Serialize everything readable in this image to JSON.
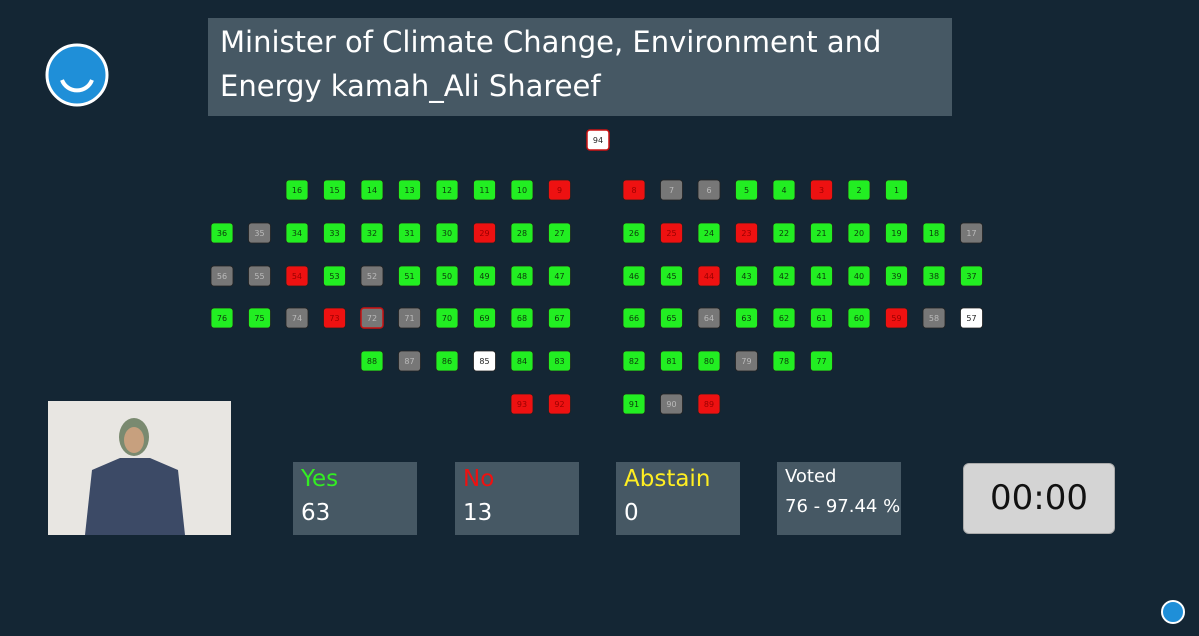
{
  "title": "Minister of Climate Change, Environment and Energy kamah_Ali Shareef",
  "seats": {
    "top": [
      {
        "n": 94,
        "fill": "#ffffff",
        "border": "#cc1111"
      }
    ],
    "left_rows": [
      [
        {
          "n": 16,
          "fill": "#22ee22"
        },
        {
          "n": 15,
          "fill": "#22ee22"
        },
        {
          "n": 14,
          "fill": "#22ee22"
        },
        {
          "n": 13,
          "fill": "#22ee22"
        },
        {
          "n": 12,
          "fill": "#22ee22"
        },
        {
          "n": 11,
          "fill": "#22ee22"
        },
        {
          "n": 10,
          "fill": "#22ee22"
        },
        {
          "n": 9,
          "fill": "#ee1111"
        }
      ],
      [
        {
          "n": 36,
          "fill": "#22ee22"
        },
        {
          "n": 35,
          "fill": "#777777"
        },
        {
          "n": 34,
          "fill": "#22ee22"
        },
        {
          "n": 33,
          "fill": "#22ee22"
        },
        {
          "n": 32,
          "fill": "#22ee22"
        },
        {
          "n": 31,
          "fill": "#22ee22"
        },
        {
          "n": 30,
          "fill": "#22ee22"
        },
        {
          "n": 29,
          "fill": "#ee1111"
        },
        {
          "n": 28,
          "fill": "#22ee22"
        },
        {
          "n": 27,
          "fill": "#22ee22"
        }
      ],
      [
        {
          "n": 56,
          "fill": "#777777"
        },
        {
          "n": 55,
          "fill": "#777777"
        },
        {
          "n": 54,
          "fill": "#ee1111"
        },
        {
          "n": 53,
          "fill": "#22ee22"
        },
        {
          "n": 52,
          "fill": "#777777"
        },
        {
          "n": 51,
          "fill": "#22ee22"
        },
        {
          "n": 50,
          "fill": "#22ee22"
        },
        {
          "n": 49,
          "fill": "#22ee22"
        },
        {
          "n": 48,
          "fill": "#22ee22"
        },
        {
          "n": 47,
          "fill": "#22ee22"
        }
      ],
      [
        {
          "n": 76,
          "fill": "#22ee22"
        },
        {
          "n": 75,
          "fill": "#22ee22"
        },
        {
          "n": 74,
          "fill": "#777777"
        },
        {
          "n": 73,
          "fill": "#ee1111"
        },
        {
          "n": 72,
          "fill": "#777777",
          "border": "#cc1111"
        },
        {
          "n": 71,
          "fill": "#777777"
        },
        {
          "n": 70,
          "fill": "#22ee22"
        },
        {
          "n": 69,
          "fill": "#22ee22"
        },
        {
          "n": 68,
          "fill": "#22ee22"
        },
        {
          "n": 67,
          "fill": "#22ee22"
        }
      ],
      [
        {
          "n": 88,
          "fill": "#22ee22"
        },
        {
          "n": 87,
          "fill": "#777777"
        },
        {
          "n": 86,
          "fill": "#22ee22"
        },
        {
          "n": 85,
          "fill": "#ffffff"
        },
        {
          "n": 84,
          "fill": "#22ee22"
        },
        {
          "n": 83,
          "fill": "#22ee22"
        }
      ],
      [
        {
          "n": 93,
          "fill": "#ee1111"
        },
        {
          "n": 92,
          "fill": "#ee1111"
        }
      ]
    ],
    "right_rows": [
      [
        {
          "n": 8,
          "fill": "#ee1111"
        },
        {
          "n": 7,
          "fill": "#777777"
        },
        {
          "n": 6,
          "fill": "#777777"
        },
        {
          "n": 5,
          "fill": "#22ee22"
        },
        {
          "n": 4,
          "fill": "#22ee22"
        },
        {
          "n": 3,
          "fill": "#ee1111"
        },
        {
          "n": 2,
          "fill": "#22ee22"
        },
        {
          "n": 1,
          "fill": "#22ee22"
        }
      ],
      [
        {
          "n": 26,
          "fill": "#22ee22"
        },
        {
          "n": 25,
          "fill": "#ee1111"
        },
        {
          "n": 24,
          "fill": "#22ee22"
        },
        {
          "n": 23,
          "fill": "#ee1111"
        },
        {
          "n": 22,
          "fill": "#22ee22"
        },
        {
          "n": 21,
          "fill": "#22ee22"
        },
        {
          "n": 20,
          "fill": "#22ee22"
        },
        {
          "n": 19,
          "fill": "#22ee22"
        },
        {
          "n": 18,
          "fill": "#22ee22"
        },
        {
          "n": 17,
          "fill": "#777777"
        }
      ],
      [
        {
          "n": 46,
          "fill": "#22ee22"
        },
        {
          "n": 45,
          "fill": "#22ee22"
        },
        {
          "n": 44,
          "fill": "#ee1111"
        },
        {
          "n": 43,
          "fill": "#22ee22"
        },
        {
          "n": 42,
          "fill": "#22ee22"
        },
        {
          "n": 41,
          "fill": "#22ee22"
        },
        {
          "n": 40,
          "fill": "#22ee22"
        },
        {
          "n": 39,
          "fill": "#22ee22"
        },
        {
          "n": 38,
          "fill": "#22ee22"
        },
        {
          "n": 37,
          "fill": "#22ee22"
        }
      ],
      [
        {
          "n": 66,
          "fill": "#22ee22"
        },
        {
          "n": 65,
          "fill": "#22ee22"
        },
        {
          "n": 64,
          "fill": "#777777"
        },
        {
          "n": 63,
          "fill": "#22ee22"
        },
        {
          "n": 62,
          "fill": "#22ee22"
        },
        {
          "n": 61,
          "fill": "#22ee22"
        },
        {
          "n": 60,
          "fill": "#22ee22"
        },
        {
          "n": 59,
          "fill": "#ee1111"
        },
        {
          "n": 58,
          "fill": "#777777"
        },
        {
          "n": 57,
          "fill": "#ffffff"
        }
      ],
      [
        {
          "n": 82,
          "fill": "#22ee22"
        },
        {
          "n": 81,
          "fill": "#22ee22"
        },
        {
          "n": 80,
          "fill": "#22ee22"
        },
        {
          "n": 79,
          "fill": "#777777"
        },
        {
          "n": 78,
          "fill": "#22ee22"
        },
        {
          "n": 77,
          "fill": "#22ee22"
        }
      ],
      [
        {
          "n": 91,
          "fill": "#22ee22"
        },
        {
          "n": 90,
          "fill": "#777777"
        },
        {
          "n": 89,
          "fill": "#ee1111"
        }
      ]
    ]
  },
  "tally": {
    "yes": {
      "label": "Yes",
      "value": 63,
      "color": "#33ee22"
    },
    "no": {
      "label": "No",
      "value": 13,
      "color": "#ee1111"
    },
    "abstain": {
      "label": "Abstain",
      "value": 0,
      "color": "#ffee22"
    },
    "voted": {
      "label": "Voted",
      "value": "76 - 97.44 %",
      "color": "#ffffff"
    }
  },
  "timer": "00:00"
}
